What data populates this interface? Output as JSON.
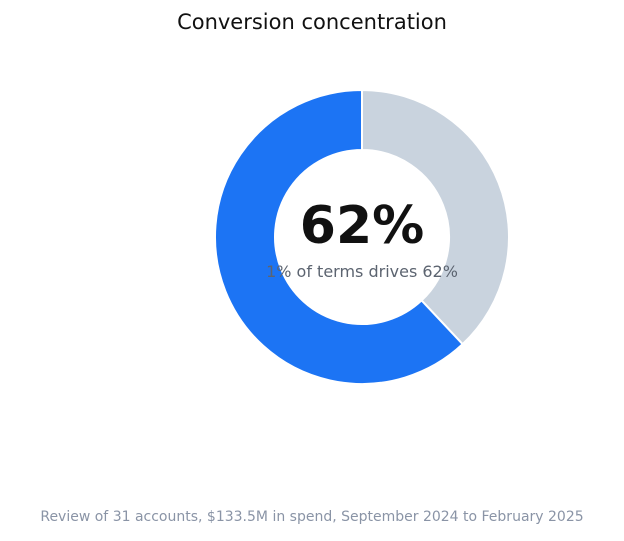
{
  "chart_data": {
    "type": "pie",
    "title": "Conversion concentration",
    "center_value": "62%",
    "center_subtitle": "1% of terms drives 62%",
    "footnote": "Review of 31 accounts, $133.5M in spend, September 2024 to February 2025",
    "slices": [
      {
        "value": 62,
        "color": "#1c74f4"
      },
      {
        "value": 38,
        "color": "#c9d3de"
      }
    ]
  }
}
